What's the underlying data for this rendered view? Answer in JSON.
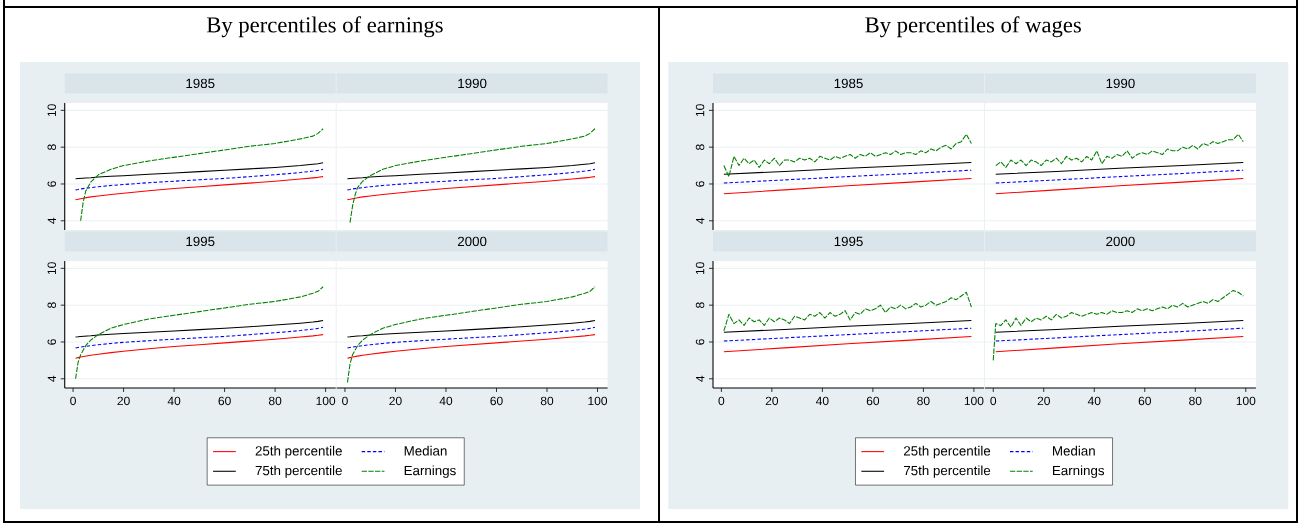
{
  "chart_data": [
    {
      "type": "line",
      "title": "1985",
      "annotations": [
        "By percentiles of earnings"
      ],
      "xlim": [
        -3.3,
        104
      ],
      "ylim": [
        3.5,
        10.4
      ],
      "xticks": [
        0,
        20,
        40,
        60,
        80,
        100
      ],
      "yticks": [
        4,
        6,
        8,
        10
      ],
      "grid": "y",
      "tick_labels": "y",
      "x": [
        1,
        2,
        3,
        5,
        7,
        10,
        15,
        20,
        30,
        40,
        50,
        60,
        70,
        80,
        90,
        95,
        97,
        99
      ],
      "series": [
        {
          "color": "#ff0000",
          "line_style": "solid",
          "values": [
            5.15,
            5.17,
            5.2,
            5.25,
            5.3,
            5.35,
            5.43,
            5.5,
            5.63,
            5.75,
            5.85,
            5.95,
            6.05,
            6.15,
            6.27,
            6.33,
            6.36,
            6.4
          ]
        },
        {
          "color": "#0000ff",
          "line_style": "dotted",
          "values": [
            5.68,
            5.7,
            5.73,
            5.77,
            5.8,
            5.85,
            5.92,
            5.97,
            6.07,
            6.15,
            6.23,
            6.3,
            6.4,
            6.5,
            6.62,
            6.7,
            6.74,
            6.8
          ]
        },
        {
          "color": "#000000",
          "line_style": "solid",
          "values": [
            6.28,
            6.29,
            6.3,
            6.32,
            6.34,
            6.38,
            6.42,
            6.45,
            6.53,
            6.6,
            6.67,
            6.75,
            6.82,
            6.9,
            7.0,
            7.07,
            7.1,
            7.15
          ]
        },
        {
          "color": "#008000",
          "line_style": "dashed",
          "x": [
            3,
            4,
            5,
            7,
            10,
            15,
            20,
            30,
            40,
            50,
            60,
            70,
            80,
            90,
            95,
            97,
            99
          ],
          "values": [
            4.0,
            5.0,
            5.6,
            6.1,
            6.5,
            6.8,
            7.0,
            7.25,
            7.45,
            7.65,
            7.85,
            8.05,
            8.2,
            8.45,
            8.6,
            8.75,
            9.0
          ]
        }
      ]
    },
    {
      "type": "line",
      "title": "1990",
      "xlim": [
        -3.3,
        104
      ],
      "ylim": [
        3.5,
        10.4
      ],
      "xticks": [
        0,
        20,
        40,
        60,
        80,
        100
      ],
      "yticks": [
        4,
        6,
        8,
        10
      ],
      "grid": "y",
      "tick_labels": false,
      "x": [
        1,
        2,
        3,
        5,
        7,
        10,
        15,
        20,
        30,
        40,
        50,
        60,
        70,
        80,
        90,
        95,
        97,
        99
      ],
      "series": [
        {
          "color": "#ff0000",
          "line_style": "solid",
          "values": [
            5.15,
            5.17,
            5.2,
            5.25,
            5.3,
            5.35,
            5.43,
            5.5,
            5.63,
            5.75,
            5.85,
            5.95,
            6.05,
            6.15,
            6.27,
            6.33,
            6.36,
            6.4
          ]
        },
        {
          "color": "#0000ff",
          "line_style": "dotted",
          "values": [
            5.68,
            5.7,
            5.73,
            5.77,
            5.8,
            5.85,
            5.92,
            5.97,
            6.07,
            6.15,
            6.23,
            6.3,
            6.4,
            6.5,
            6.62,
            6.7,
            6.74,
            6.8
          ]
        },
        {
          "color": "#000000",
          "line_style": "solid",
          "values": [
            6.28,
            6.29,
            6.3,
            6.32,
            6.34,
            6.38,
            6.42,
            6.45,
            6.53,
            6.6,
            6.67,
            6.75,
            6.82,
            6.9,
            7.0,
            7.07,
            7.1,
            7.15
          ]
        },
        {
          "color": "#008000",
          "line_style": "dashed",
          "x": [
            2,
            3,
            4,
            5,
            7,
            10,
            15,
            20,
            30,
            40,
            50,
            60,
            70,
            80,
            90,
            95,
            97,
            99
          ],
          "values": [
            3.9,
            4.8,
            5.4,
            5.8,
            6.15,
            6.45,
            6.8,
            7.0,
            7.25,
            7.45,
            7.65,
            7.85,
            8.05,
            8.2,
            8.45,
            8.6,
            8.75,
            9.0
          ]
        }
      ]
    },
    {
      "type": "line",
      "title": "1995",
      "xlim": [
        -3.3,
        104
      ],
      "ylim": [
        3.5,
        10.4
      ],
      "xticks": [
        0,
        20,
        40,
        60,
        80,
        100
      ],
      "yticks": [
        4,
        6,
        8,
        10
      ],
      "grid": "y",
      "legend": "bottom",
      "x": [
        1,
        2,
        3,
        5,
        7,
        10,
        15,
        20,
        30,
        40,
        50,
        60,
        70,
        80,
        90,
        95,
        97,
        99
      ],
      "series": [
        {
          "name": "25th percentile",
          "color": "#ff0000",
          "line_style": "solid",
          "values": [
            5.12,
            5.15,
            5.18,
            5.23,
            5.28,
            5.33,
            5.42,
            5.5,
            5.63,
            5.75,
            5.85,
            5.95,
            6.05,
            6.15,
            6.27,
            6.33,
            6.36,
            6.4
          ]
        },
        {
          "name": "Median",
          "color": "#0000ff",
          "line_style": "dotted",
          "values": [
            5.67,
            5.7,
            5.72,
            5.76,
            5.8,
            5.85,
            5.92,
            5.98,
            6.07,
            6.15,
            6.23,
            6.3,
            6.4,
            6.5,
            6.62,
            6.7,
            6.74,
            6.8
          ]
        },
        {
          "name": "75th percentile",
          "color": "#000000",
          "line_style": "solid",
          "values": [
            6.27,
            6.28,
            6.3,
            6.32,
            6.34,
            6.38,
            6.42,
            6.46,
            6.53,
            6.6,
            6.67,
            6.75,
            6.83,
            6.92,
            7.02,
            7.08,
            7.12,
            7.17
          ]
        },
        {
          "name": "Earnings",
          "color": "#008000",
          "line_style": "dashed",
          "x": [
            1,
            2,
            3,
            5,
            7,
            10,
            15,
            20,
            30,
            40,
            50,
            60,
            70,
            80,
            90,
            95,
            97,
            99
          ],
          "values": [
            4.0,
            4.9,
            5.3,
            5.8,
            6.1,
            6.4,
            6.75,
            6.95,
            7.25,
            7.45,
            7.65,
            7.85,
            8.05,
            8.2,
            8.45,
            8.65,
            8.75,
            9.0
          ]
        }
      ]
    },
    {
      "type": "line",
      "title": "2000",
      "xlim": [
        -3.3,
        104
      ],
      "ylim": [
        3.5,
        10.4
      ],
      "xticks": [
        0,
        20,
        40,
        60,
        80,
        100
      ],
      "yticks": [
        4,
        6,
        8,
        10
      ],
      "grid": "y",
      "tick_labels": "x",
      "x": [
        1,
        2,
        3,
        5,
        7,
        10,
        15,
        20,
        30,
        40,
        50,
        60,
        70,
        80,
        90,
        95,
        97,
        99
      ],
      "series": [
        {
          "color": "#ff0000",
          "line_style": "solid",
          "values": [
            5.12,
            5.15,
            5.18,
            5.23,
            5.28,
            5.33,
            5.42,
            5.5,
            5.63,
            5.75,
            5.85,
            5.95,
            6.05,
            6.15,
            6.27,
            6.33,
            6.36,
            6.4
          ]
        },
        {
          "color": "#0000ff",
          "line_style": "dotted",
          "values": [
            5.67,
            5.7,
            5.72,
            5.76,
            5.8,
            5.85,
            5.92,
            5.98,
            6.07,
            6.15,
            6.23,
            6.3,
            6.4,
            6.5,
            6.62,
            6.7,
            6.74,
            6.8
          ]
        },
        {
          "color": "#000000",
          "line_style": "solid",
          "values": [
            6.27,
            6.28,
            6.3,
            6.32,
            6.34,
            6.38,
            6.42,
            6.46,
            6.53,
            6.6,
            6.67,
            6.75,
            6.83,
            6.92,
            7.02,
            7.08,
            7.12,
            7.17
          ]
        },
        {
          "color": "#008000",
          "line_style": "dashed",
          "x": [
            1,
            2,
            3,
            5,
            7,
            10,
            15,
            20,
            30,
            40,
            50,
            60,
            70,
            80,
            90,
            95,
            97,
            99
          ],
          "values": [
            3.8,
            4.8,
            5.3,
            5.8,
            6.1,
            6.4,
            6.75,
            6.95,
            7.25,
            7.45,
            7.65,
            7.85,
            8.05,
            8.2,
            8.45,
            8.65,
            8.75,
            9.0
          ]
        }
      ]
    },
    {
      "type": "line",
      "title": "1985",
      "annotations": [
        "By percentiles of wages"
      ],
      "xlim": [
        -3.3,
        104
      ],
      "ylim": [
        3.5,
        10.4
      ],
      "xticks": [
        0,
        20,
        40,
        60,
        80,
        100
      ],
      "yticks": [
        4,
        6,
        8,
        10
      ],
      "grid": "y",
      "tick_labels": "y",
      "x": [
        1,
        25,
        50,
        75,
        99
      ],
      "series": [
        {
          "color": "#ff0000",
          "line_style": "solid",
          "values": [
            5.47,
            5.68,
            5.9,
            6.1,
            6.3
          ]
        },
        {
          "color": "#0000ff",
          "line_style": "dotted",
          "values": [
            6.05,
            6.22,
            6.4,
            6.57,
            6.75
          ]
        },
        {
          "color": "#000000",
          "line_style": "solid",
          "values": [
            6.53,
            6.68,
            6.85,
            7.0,
            7.17
          ]
        },
        {
          "color": "#008000",
          "line_style": "dashed",
          "x": [
            1,
            3,
            5,
            7,
            9,
            11,
            13,
            15,
            17,
            19,
            21,
            23,
            25,
            27,
            29,
            31,
            33,
            35,
            37,
            39,
            41,
            43,
            45,
            47,
            49,
            51,
            53,
            55,
            57,
            59,
            61,
            63,
            65,
            67,
            69,
            71,
            73,
            75,
            77,
            79,
            81,
            83,
            85,
            87,
            89,
            91,
            93,
            95,
            97,
            99
          ],
          "values": [
            7.0,
            6.4,
            7.5,
            7.0,
            7.4,
            7.1,
            7.3,
            6.9,
            7.3,
            7.1,
            7.4,
            7.0,
            7.3,
            7.3,
            7.2,
            7.4,
            7.3,
            7.4,
            7.2,
            7.5,
            7.4,
            7.3,
            7.5,
            7.4,
            7.5,
            7.6,
            7.4,
            7.6,
            7.5,
            7.7,
            7.5,
            7.6,
            7.7,
            7.6,
            7.8,
            7.6,
            7.7,
            7.7,
            7.6,
            7.8,
            7.7,
            7.9,
            7.8,
            8.0,
            8.1,
            7.9,
            8.2,
            8.3,
            8.7,
            8.2
          ]
        }
      ]
    },
    {
      "type": "line",
      "title": "1990",
      "xlim": [
        -3.3,
        104
      ],
      "ylim": [
        3.5,
        10.4
      ],
      "xticks": [
        0,
        20,
        40,
        60,
        80,
        100
      ],
      "yticks": [
        4,
        6,
        8,
        10
      ],
      "grid": "y",
      "tick_labels": false,
      "x": [
        1,
        25,
        50,
        75,
        99
      ],
      "series": [
        {
          "color": "#ff0000",
          "line_style": "solid",
          "values": [
            5.47,
            5.68,
            5.9,
            6.1,
            6.3
          ]
        },
        {
          "color": "#0000ff",
          "line_style": "dotted",
          "values": [
            6.05,
            6.22,
            6.4,
            6.57,
            6.75
          ]
        },
        {
          "color": "#000000",
          "line_style": "solid",
          "values": [
            6.53,
            6.68,
            6.85,
            7.0,
            7.17
          ]
        },
        {
          "color": "#008000",
          "line_style": "dashed",
          "x": [
            1,
            3,
            5,
            7,
            9,
            11,
            13,
            15,
            17,
            19,
            21,
            23,
            25,
            27,
            29,
            31,
            33,
            35,
            37,
            39,
            41,
            43,
            45,
            47,
            49,
            51,
            53,
            55,
            57,
            59,
            61,
            63,
            65,
            67,
            69,
            71,
            73,
            75,
            77,
            79,
            81,
            83,
            85,
            87,
            89,
            91,
            93,
            95,
            97,
            99
          ],
          "values": [
            7.0,
            7.2,
            6.9,
            7.3,
            7.1,
            7.3,
            7.0,
            7.3,
            7.2,
            7.0,
            7.3,
            7.2,
            7.4,
            7.1,
            7.5,
            7.3,
            7.4,
            7.2,
            7.5,
            7.3,
            7.8,
            7.1,
            7.5,
            7.4,
            7.6,
            7.5,
            7.8,
            7.4,
            7.6,
            7.7,
            7.6,
            7.8,
            7.7,
            7.6,
            7.9,
            7.8,
            7.8,
            8.0,
            7.9,
            8.1,
            7.9,
            8.2,
            8.1,
            8.3,
            8.2,
            8.3,
            8.4,
            8.4,
            8.7,
            8.3
          ]
        }
      ]
    },
    {
      "type": "line",
      "title": "1995",
      "xlim": [
        -3.3,
        104
      ],
      "ylim": [
        3.5,
        10.4
      ],
      "xticks": [
        0,
        20,
        40,
        60,
        80,
        100
      ],
      "yticks": [
        4,
        6,
        8,
        10
      ],
      "grid": "y",
      "legend": "bottom",
      "x": [
        1,
        25,
        50,
        75,
        99
      ],
      "series": [
        {
          "name": "25th percentile",
          "color": "#ff0000",
          "line_style": "solid",
          "values": [
            5.47,
            5.68,
            5.9,
            6.1,
            6.3
          ]
        },
        {
          "name": "Median",
          "color": "#0000ff",
          "line_style": "dotted",
          "values": [
            6.05,
            6.22,
            6.4,
            6.57,
            6.75
          ]
        },
        {
          "name": "75th percentile",
          "color": "#000000",
          "line_style": "solid",
          "values": [
            6.53,
            6.68,
            6.85,
            7.0,
            7.17
          ]
        },
        {
          "name": "Earnings",
          "color": "#008000",
          "line_style": "dashed",
          "x": [
            1,
            3,
            5,
            7,
            9,
            11,
            13,
            15,
            17,
            19,
            21,
            23,
            25,
            27,
            29,
            31,
            33,
            35,
            37,
            39,
            41,
            43,
            45,
            47,
            49,
            51,
            53,
            55,
            57,
            59,
            61,
            63,
            65,
            67,
            69,
            71,
            73,
            75,
            77,
            79,
            81,
            83,
            85,
            87,
            89,
            91,
            93,
            95,
            97,
            99
          ],
          "values": [
            6.6,
            7.5,
            7.0,
            7.2,
            6.9,
            7.3,
            7.1,
            7.2,
            6.9,
            7.3,
            7.1,
            7.3,
            7.2,
            7.0,
            7.4,
            7.3,
            7.2,
            7.5,
            7.4,
            7.6,
            7.3,
            7.6,
            7.4,
            7.5,
            7.7,
            7.2,
            7.6,
            7.5,
            7.8,
            7.7,
            7.8,
            8.0,
            7.6,
            7.9,
            7.8,
            8.0,
            7.8,
            7.9,
            8.1,
            7.9,
            8.0,
            8.2,
            8.0,
            8.1,
            8.2,
            8.4,
            8.3,
            8.5,
            8.7,
            7.9
          ]
        }
      ]
    },
    {
      "type": "line",
      "title": "2000",
      "xlim": [
        -3.3,
        104
      ],
      "ylim": [
        3.5,
        10.4
      ],
      "xticks": [
        0,
        20,
        40,
        60,
        80,
        100
      ],
      "yticks": [
        4,
        6,
        8,
        10
      ],
      "grid": "y",
      "tick_labels": "x",
      "x": [
        1,
        25,
        50,
        75,
        99
      ],
      "series": [
        {
          "color": "#ff0000",
          "line_style": "solid",
          "values": [
            5.47,
            5.68,
            5.9,
            6.1,
            6.3
          ]
        },
        {
          "color": "#0000ff",
          "line_style": "dotted",
          "values": [
            6.05,
            6.22,
            6.4,
            6.57,
            6.75
          ]
        },
        {
          "color": "#000000",
          "line_style": "solid",
          "values": [
            6.53,
            6.68,
            6.85,
            7.0,
            7.17
          ]
        },
        {
          "color": "#008000",
          "line_style": "dashed",
          "x": [
            0,
            1,
            3,
            5,
            7,
            9,
            11,
            13,
            15,
            17,
            19,
            21,
            23,
            25,
            27,
            29,
            31,
            33,
            35,
            37,
            39,
            41,
            43,
            45,
            47,
            49,
            51,
            53,
            55,
            57,
            59,
            61,
            63,
            65,
            67,
            69,
            71,
            73,
            75,
            77,
            79,
            81,
            83,
            85,
            87,
            89,
            91,
            93,
            95,
            97,
            99
          ],
          "values": [
            5.0,
            7.0,
            6.9,
            7.2,
            6.8,
            7.3,
            6.9,
            7.3,
            7.1,
            7.3,
            7.2,
            7.4,
            7.2,
            7.5,
            7.3,
            7.4,
            7.6,
            7.5,
            7.4,
            7.5,
            7.6,
            7.5,
            7.6,
            7.5,
            7.7,
            7.6,
            7.6,
            7.7,
            7.6,
            7.8,
            7.7,
            7.8,
            7.7,
            7.8,
            7.9,
            7.8,
            8.0,
            7.9,
            8.1,
            7.9,
            8.0,
            8.1,
            8.2,
            8.1,
            8.3,
            8.2,
            8.4,
            8.6,
            8.8,
            8.7,
            8.5
          ]
        }
      ]
    }
  ]
}
